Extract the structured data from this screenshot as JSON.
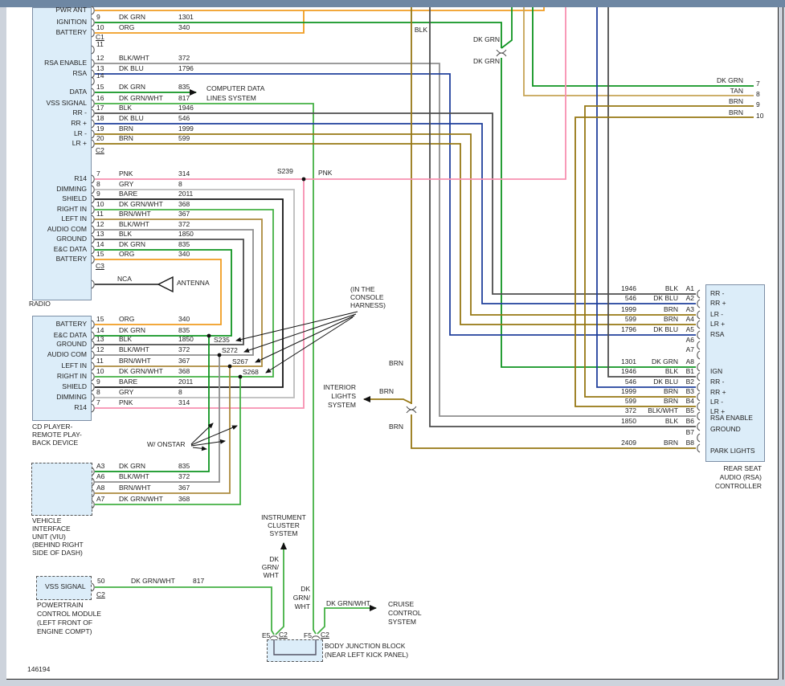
{
  "footer": "146194",
  "colors": {
    "dk_grn": "#0e9420",
    "dk_grn_wht": "#44b044",
    "org": "#f09c20",
    "dk_blu": "#20409c",
    "brn": "#967713",
    "tan": "#c6a455",
    "brn_wht": "#ac8b3e",
    "blk": "#4d4d4d",
    "blk_wht": "#8f8f8f",
    "gry": "#bcbcbc",
    "bare": "#141414",
    "pnk": "#f890b0",
    "box_fill": "#dcedf9",
    "titlebar": "#6e87a3"
  },
  "radio": {
    "label": "RADIO",
    "conn_labels": {
      "c1": "C1",
      "c2": "C2",
      "c3": "C3"
    },
    "c2_rows": [
      {
        "pin": "",
        "color": "",
        "circuit": "",
        "left": "PWR ANT"
      },
      {
        "pin": "9",
        "color": "DK GRN",
        "circuit": "1301",
        "left": "IGNITION"
      },
      {
        "pin": "10",
        "color": "ORG",
        "circuit": "340",
        "left": "BATTERY"
      },
      {
        "pin": "11",
        "color": "",
        "circuit": "",
        "left": ""
      },
      {
        "pin": "12",
        "color": "BLK/WHT",
        "circuit": "372",
        "left": "RSA ENABLE"
      },
      {
        "pin": "13",
        "color": "DK BLU",
        "circuit": "1796",
        "left": "RSA"
      },
      {
        "pin": "14",
        "color": "",
        "circuit": "",
        "left": ""
      },
      {
        "pin": "15",
        "color": "DK GRN",
        "circuit": "835",
        "left": "DATA"
      },
      {
        "pin": "16",
        "color": "DK GRN/WHT",
        "circuit": "817",
        "left": "VSS SIGNAL"
      },
      {
        "pin": "17",
        "color": "BLK",
        "circuit": "1946",
        "left": "RR -"
      },
      {
        "pin": "18",
        "color": "DK BLU",
        "circuit": "546",
        "left": "RR +"
      },
      {
        "pin": "19",
        "color": "BRN",
        "circuit": "1999",
        "left": "LR -"
      },
      {
        "pin": "20",
        "color": "BRN",
        "circuit": "599",
        "left": "LR +"
      }
    ],
    "c3_rows": [
      {
        "pin": "7",
        "color": "PNK",
        "circuit": "314",
        "left": "R14"
      },
      {
        "pin": "8",
        "color": "GRY",
        "circuit": "8",
        "left": "DIMMING"
      },
      {
        "pin": "9",
        "color": "BARE",
        "circuit": "2011",
        "left": "SHIELD"
      },
      {
        "pin": "10",
        "color": "DK GRN/WHT",
        "circuit": "368",
        "left": "RIGHT IN"
      },
      {
        "pin": "11",
        "color": "BRN/WHT",
        "circuit": "367",
        "left": "LEFT IN"
      },
      {
        "pin": "12",
        "color": "BLK/WHT",
        "circuit": "372",
        "left": "AUDIO COM"
      },
      {
        "pin": "13",
        "color": "BLK",
        "circuit": "1850",
        "left": "GROUND"
      },
      {
        "pin": "14",
        "color": "DK GRN",
        "circuit": "835",
        "left": "E&C DATA"
      },
      {
        "pin": "15",
        "color": "ORG",
        "circuit": "340",
        "left": "BATTERY"
      }
    ],
    "antenna": {
      "nca": "NCA",
      "label": "ANTENNA"
    }
  },
  "cd": {
    "label_lines": [
      "CD PLAYER-",
      "REMOTE PLAY-",
      "BACK DEVICE"
    ],
    "rows": [
      {
        "pin": "15",
        "color": "ORG",
        "circuit": "340",
        "left": "BATTERY"
      },
      {
        "pin": "14",
        "color": "DK GRN",
        "circuit": "835",
        "left": "E&C DATA"
      },
      {
        "pin": "13",
        "color": "BLK",
        "circuit": "1850",
        "left": "GROUND"
      },
      {
        "pin": "12",
        "color": "BLK/WHT",
        "circuit": "372",
        "left": "AUDIO COM"
      },
      {
        "pin": "11",
        "color": "BRN/WHT",
        "circuit": "367",
        "left": "LEFT IN"
      },
      {
        "pin": "10",
        "color": "DK GRN/WHT",
        "circuit": "368",
        "left": "RIGHT IN"
      },
      {
        "pin": "9",
        "color": "BARE",
        "circuit": "2011",
        "left": "SHIELD"
      },
      {
        "pin": "8",
        "color": "GRY",
        "circuit": "8",
        "left": "DIMMING"
      },
      {
        "pin": "7",
        "color": "PNK",
        "circuit": "314",
        "left": "R14"
      }
    ]
  },
  "viu": {
    "label_lines": [
      "VEHICLE",
      "INTERFACE",
      "UNIT (VIU)",
      "(BEHIND RIGHT",
      "SIDE OF DASH)"
    ],
    "rows": [
      {
        "pin": "A3",
        "color": "DK GRN",
        "circuit": "835"
      },
      {
        "pin": "A6",
        "color": "BLK/WHT",
        "circuit": "372"
      },
      {
        "pin": "A8",
        "color": "BRN/WHT",
        "circuit": "367"
      },
      {
        "pin": "A7",
        "color": "DK GRN/WHT",
        "circuit": "368"
      }
    ]
  },
  "pcm": {
    "box_label": "VSS SIGNAL",
    "pin": "50",
    "conn": "C2",
    "wire_color": "DK GRN/WHT",
    "wire_circuit": "817",
    "label_lines": [
      "POWERTRAIN",
      "CONTROL MODULE",
      "(LEFT FRONT OF",
      "ENGINE COMPT)"
    ]
  },
  "rsa": {
    "label_lines": [
      "REAR SEAT",
      "AUDIO (RSA)",
      "CONTROLLER"
    ],
    "rows": [
      {
        "circuit": "1946",
        "color": "BLK",
        "pin": "A1",
        "label": "RR -"
      },
      {
        "circuit": "546",
        "color": "DK BLU",
        "pin": "A2",
        "label": "RR +"
      },
      {
        "circuit": "1999",
        "color": "BRN",
        "pin": "A3",
        "label": "LR -"
      },
      {
        "circuit": "599",
        "color": "BRN",
        "pin": "A4",
        "label": "LR +"
      },
      {
        "circuit": "1796",
        "color": "DK BLU",
        "pin": "A5",
        "label": "RSA"
      },
      {
        "circuit": "",
        "color": "",
        "pin": "A6",
        "label": ""
      },
      {
        "circuit": "",
        "color": "",
        "pin": "A7",
        "label": ""
      },
      {
        "circuit": "1301",
        "color": "DK GRN",
        "pin": "A8",
        "label": "IGN"
      },
      {
        "circuit": "1946",
        "color": "BLK",
        "pin": "B1",
        "label": "RR -"
      },
      {
        "circuit": "546",
        "color": "DK BLU",
        "pin": "B2",
        "label": "RR +"
      },
      {
        "circuit": "1999",
        "color": "BRN",
        "pin": "B3",
        "label": "LR -"
      },
      {
        "circuit": "599",
        "color": "BRN",
        "pin": "B4",
        "label": "LR +"
      },
      {
        "circuit": "372",
        "color": "BLK/WHT",
        "pin": "B5",
        "label": "RSA ENABLE"
      },
      {
        "circuit": "1850",
        "color": "BLK",
        "pin": "B6",
        "label": "GROUND"
      },
      {
        "circuit": "",
        "color": "",
        "pin": "B7",
        "label": ""
      },
      {
        "circuit": "2409",
        "color": "BRN",
        "pin": "B8",
        "label": "PARK LIGHTS"
      }
    ]
  },
  "edge_pins": [
    {
      "color": "DK GRN",
      "num": "7"
    },
    {
      "color": "TAN",
      "num": "8"
    },
    {
      "color": "BRN",
      "num": "9"
    },
    {
      "color": "BRN",
      "num": "10"
    }
  ],
  "splices": {
    "s239": "S239",
    "s235": "S235",
    "s272": "S272",
    "s267": "S267",
    "s268": "S268"
  },
  "float_labels": {
    "pnk": "PNK",
    "blk": "BLK",
    "dk_grn_upper": "DK GRN",
    "dk_grn_lower": "DK GRN",
    "brn_upper": "BRN",
    "brn_mid": "BRN",
    "brn_lower": "BRN",
    "dkgrnwht_cluster": [
      "DK",
      "GRN/",
      "WHT"
    ],
    "dkgrnwht_f5": [
      "DK",
      "GRN/",
      "WHT"
    ],
    "dkgrnwht_cruise": "DK GRN/WHT"
  },
  "systems": {
    "computer_data": [
      "COMPUTER DATA",
      "LINES SYSTEM"
    ],
    "interior_lights": [
      "INTERIOR",
      "LIGHTS",
      "SYSTEM"
    ],
    "instrument_cluster": [
      "INSTRUMENT",
      "CLUSTER",
      "SYSTEM"
    ],
    "cruise": [
      "CRUISE",
      "CONTROL",
      "SYSTEM"
    ]
  },
  "junction": {
    "e5": "E5",
    "c2a": "C2",
    "f5": "F5",
    "c2b": "C2",
    "label_lines": [
      "BODY JUNCTION BLOCK",
      "(NEAR LEFT KICK PANEL)"
    ]
  },
  "onstar": "W/ ONSTAR",
  "console_note_lines": [
    "(IN THE",
    "CONSOLE",
    "HARNESS)"
  ],
  "wire_numbers_note": ""
}
